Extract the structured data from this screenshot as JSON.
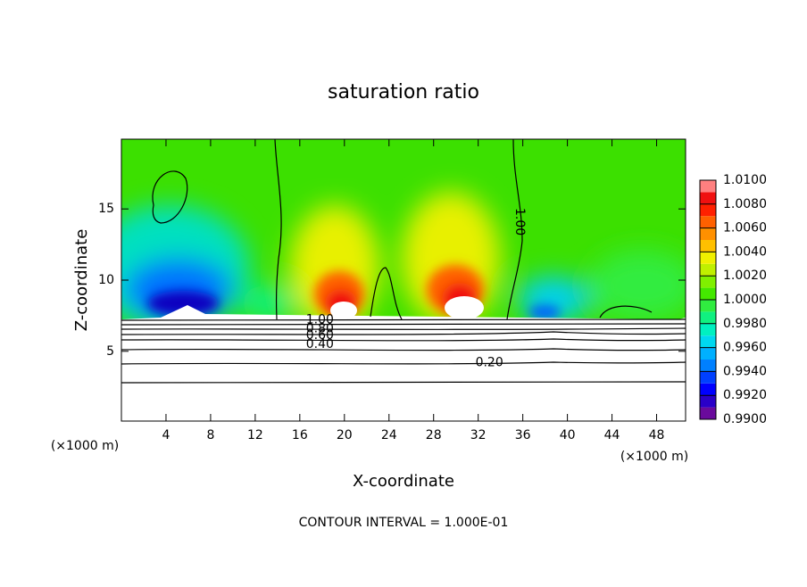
{
  "chart_data": {
    "type": "contour",
    "title": "saturation ratio",
    "x_label": "X-coordinate",
    "y_label": "Z-coordinate",
    "x_unit_left": "(×1000 m)",
    "x_unit_right": "(×1000 m)",
    "footnote": "CONTOUR INTERVAL = 1.000E-01",
    "xlim": [
      0,
      50.6
    ],
    "xticks": [
      4,
      8,
      12,
      16,
      20,
      24,
      28,
      32,
      36,
      40,
      44,
      48
    ],
    "ylim": [
      0.1,
      19.9
    ],
    "yticks": [
      5,
      10,
      15
    ],
    "contour_labels": [
      {
        "text": "1.00",
        "x": 35.7,
        "y": 14.1,
        "rotation": 90
      },
      {
        "text": "1.00",
        "x": 17.8,
        "y": 7.2
      },
      {
        "text": "0.80",
        "x": 17.8,
        "y": 6.6
      },
      {
        "text": "0.60",
        "x": 17.8,
        "y": 6.1
      },
      {
        "text": "0.40",
        "x": 17.8,
        "y": 5.5
      },
      {
        "text": "0.20",
        "x": 33,
        "y": 4.2
      }
    ],
    "colorbar": {
      "lim": [
        0.99,
        1.01
      ],
      "ticks": [
        {
          "value": 0.99,
          "label": "0.9900"
        },
        {
          "value": 0.992,
          "label": "0.9920"
        },
        {
          "value": 0.994,
          "label": "0.9940"
        },
        {
          "value": 0.996,
          "label": "0.9960"
        },
        {
          "value": 0.998,
          "label": "0.9980"
        },
        {
          "value": 1.0,
          "label": "1.0000"
        },
        {
          "value": 1.002,
          "label": "1.0020"
        },
        {
          "value": 1.004,
          "label": "1.0040"
        },
        {
          "value": 1.006,
          "label": "1.0060"
        },
        {
          "value": 1.008,
          "label": "1.0080"
        },
        {
          "value": 1.01,
          "label": "1.0100"
        }
      ],
      "colors": [
        "#6a0a9c",
        "#2a00c8",
        "#0000ff",
        "#0040ff",
        "#0080ff",
        "#00b0ff",
        "#00d8f0",
        "#00f0c0",
        "#10f080",
        "#30ec40",
        "#44e800",
        "#80f000",
        "#c0f000",
        "#f0f000",
        "#ffc000",
        "#ff9000",
        "#ff6000",
        "#ff2000",
        "#f01010",
        "#ff8080"
      ]
    }
  }
}
